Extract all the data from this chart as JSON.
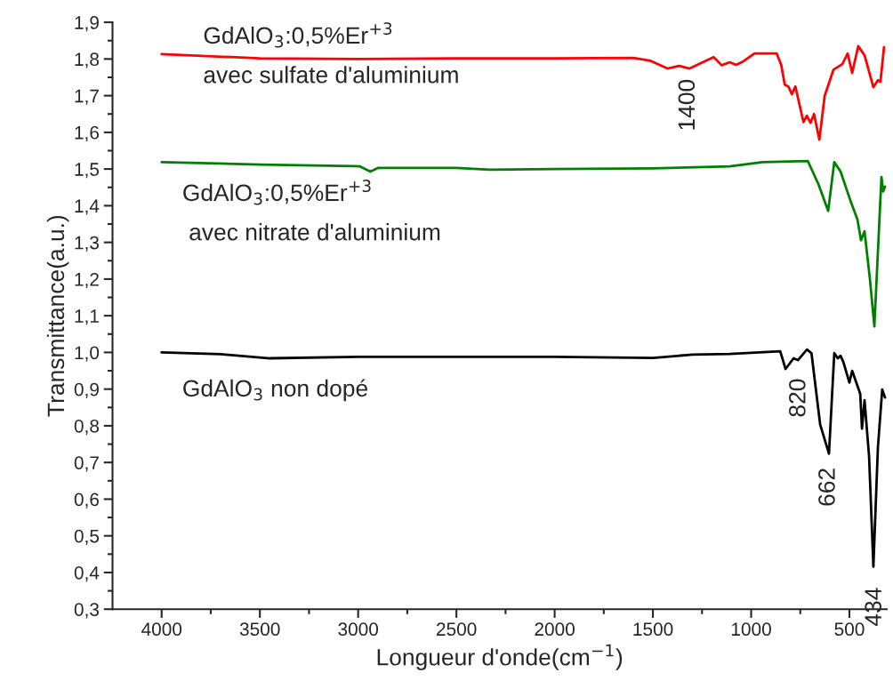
{
  "chart_data": {
    "type": "line",
    "xlabel": "Longueur d'onde(cm$^{−1}$)",
    "ylabel": "Transmittance(a.u.)",
    "series": [
      {
        "color": "#ff0000",
        "x": [
          4000,
          3500,
          3000,
          2500,
          2000,
          1600,
          1511,
          1426,
          1367,
          1313,
          1191,
          1150,
          1109,
          1077,
          1041,
          983,
          870,
          847,
          829,
          811,
          793,
          775,
          734,
          716,
          698,
          680,
          653,
          626,
          581,
          536,
          509,
          486,
          455,
          423,
          378,
          355,
          342,
          324
        ],
        "values": [
          1.813,
          1.802,
          1.8,
          1.802,
          1.802,
          1.803,
          1.795,
          1.774,
          1.781,
          1.774,
          1.805,
          1.783,
          1.791,
          1.784,
          1.793,
          1.815,
          1.815,
          1.784,
          1.73,
          1.725,
          1.704,
          1.725,
          1.628,
          1.645,
          1.626,
          1.65,
          1.58,
          1.699,
          1.771,
          1.786,
          1.815,
          1.762,
          1.835,
          1.81,
          1.723,
          1.742,
          1.738,
          1.832
        ]
      },
      {
        "color": "#008000",
        "x": [
          4000,
          3500,
          3020,
          2990,
          2938,
          2900,
          2500,
          2330,
          2000,
          1500,
          1109,
          942,
          712,
          658,
          608,
          577,
          545,
          491,
          459,
          441,
          423,
          396,
          373,
          350,
          337,
          328,
          319
        ],
        "values": [
          1.519,
          1.512,
          1.508,
          1.507,
          1.493,
          1.503,
          1.503,
          1.498,
          1.5,
          1.502,
          1.507,
          1.519,
          1.522,
          1.459,
          1.386,
          1.519,
          1.493,
          1.408,
          1.362,
          1.306,
          1.33,
          1.202,
          1.071,
          1.33,
          1.478,
          1.439,
          1.452
        ]
      },
      {
        "color": "#000000",
        "x": [
          4000,
          3700,
          3449,
          3000,
          2500,
          2000,
          1500,
          1300,
          1109,
          852,
          825,
          784,
          762,
          716,
          693,
          649,
          604,
          577,
          559,
          545,
          531,
          500,
          486,
          445,
          436,
          423,
          400,
          378,
          355,
          333,
          319
        ],
        "values": [
          1.0,
          0.995,
          0.984,
          0.988,
          0.988,
          0.988,
          0.985,
          0.994,
          0.996,
          1.003,
          0.955,
          0.984,
          0.979,
          1.008,
          0.998,
          0.804,
          0.724,
          0.998,
          0.984,
          0.991,
          0.974,
          0.918,
          0.95,
          0.887,
          0.792,
          0.87,
          0.717,
          0.416,
          0.741,
          0.899,
          0.877
        ]
      }
    ],
    "xlim": [
      4250,
      310
    ],
    "xticks": [
      4000,
      3500,
      3000,
      2500,
      2000,
      1500,
      1000,
      500,
      {
        "value": 3750,
        "label": null
      },
      {
        "value": 3250,
        "label": null
      },
      {
        "value": 2750,
        "label": null
      },
      {
        "value": 2250,
        "label": null
      },
      {
        "value": 1750,
        "label": null
      },
      {
        "value": 1250,
        "label": null
      },
      {
        "value": 750,
        "label": null
      }
    ],
    "ylim": [
      0.3,
      1.9
    ],
    "yticks": [
      {
        "value": 0.3,
        "label": "0,3"
      },
      {
        "value": 0.4,
        "label": "0,4"
      },
      {
        "value": 0.5,
        "label": "0,5"
      },
      {
        "value": 0.6,
        "label": "0,6"
      },
      {
        "value": 0.7,
        "label": "0,7"
      },
      {
        "value": 0.8,
        "label": "0,8"
      },
      {
        "value": 0.9,
        "label": "0,9"
      },
      {
        "value": 1.0,
        "label": "1,0"
      },
      {
        "value": 1.1,
        "label": "1,1"
      },
      {
        "value": 1.2,
        "label": "1,2"
      },
      {
        "value": 1.3,
        "label": "1,3"
      },
      {
        "value": 1.4,
        "label": "1,4"
      },
      {
        "value": 1.5,
        "label": "1,5"
      },
      {
        "value": 1.6,
        "label": "1,6"
      },
      {
        "value": 1.7,
        "label": "1,7"
      },
      {
        "value": 1.8,
        "label": "1,8"
      },
      {
        "value": 1.9,
        "label": "1,9"
      },
      {
        "value": 0.35,
        "label": null
      },
      {
        "value": 0.45,
        "label": null
      },
      {
        "value": 0.55,
        "label": null
      },
      {
        "value": 0.65,
        "label": null
      },
      {
        "value": 0.75,
        "label": null
      },
      {
        "value": 0.85,
        "label": null
      },
      {
        "value": 0.95,
        "label": null
      },
      {
        "value": 1.05,
        "label": null
      },
      {
        "value": 1.15,
        "label": null
      },
      {
        "value": 1.25,
        "label": null
      },
      {
        "value": 1.35,
        "label": null
      },
      {
        "value": 1.45,
        "label": null
      },
      {
        "value": 1.55,
        "label": null
      },
      {
        "value": 1.65,
        "label": null
      },
      {
        "value": 1.75,
        "label": null
      },
      {
        "value": 1.85,
        "label": null
      }
    ],
    "annotations": [
      "GdAlO$_{3}$:0,5%Er$^{+3}$",
      "avec sulfate d'aluminium",
      "GdAlO$_{3}$:0,5%Er$^{+3}$",
      " avec nitrate d'aluminium",
      "GdAlO$_{3}$ non dopé",
      "1400",
      "820",
      "662",
      "434"
    ],
    "grid": false,
    "legend": false,
    "marker": "none",
    "line_style": "solid"
  }
}
